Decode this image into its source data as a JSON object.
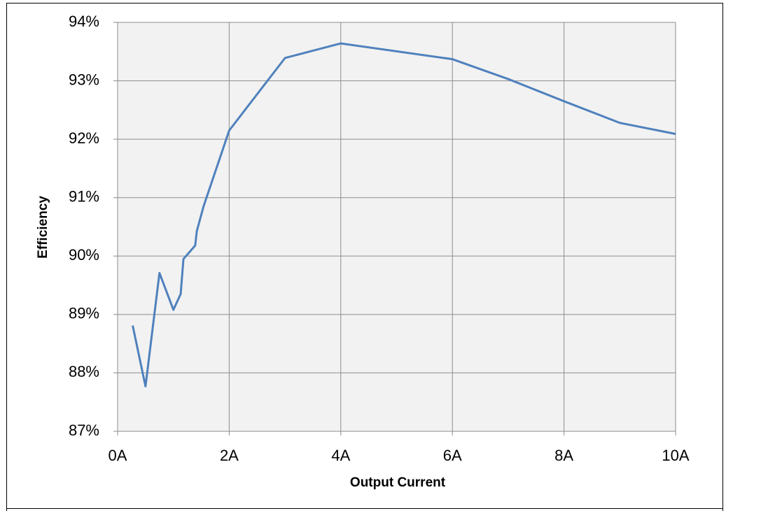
{
  "chart_data": {
    "type": "line",
    "x_label": "Output Current",
    "y_label": "Efficiency",
    "x": [
      0.27,
      0.5,
      0.75,
      1.0,
      1.13,
      1.18,
      1.39,
      1.42,
      1.54,
      2.0,
      3.0,
      4.0,
      6.0,
      7.0,
      8.0,
      9.0,
      10.0
    ],
    "series": [
      {
        "name": "Efficiency",
        "color": "#4f81bd",
        "values": [
          88.81,
          87.77,
          89.71,
          89.08,
          89.35,
          89.95,
          90.18,
          90.43,
          90.85,
          92.15,
          93.39,
          93.64,
          93.37,
          93.03,
          92.65,
          92.28,
          92.09
        ]
      }
    ],
    "xlim": [
      0,
      10
    ],
    "xticks": [
      {
        "value": 0,
        "label": "0A"
      },
      {
        "value": 2,
        "label": "2A"
      },
      {
        "value": 4,
        "label": "4A"
      },
      {
        "value": 6,
        "label": "6A"
      },
      {
        "value": 8,
        "label": "8A"
      },
      {
        "value": 10,
        "label": "10A"
      }
    ],
    "ylim": [
      87,
      94
    ],
    "yticks": [
      {
        "value": 87,
        "label": "87%"
      },
      {
        "value": 88,
        "label": "88%"
      },
      {
        "value": 89,
        "label": "89%"
      },
      {
        "value": 90,
        "label": "90%"
      },
      {
        "value": 91,
        "label": "91%"
      },
      {
        "value": 92,
        "label": "92%"
      },
      {
        "value": 93,
        "label": "93%"
      },
      {
        "value": 94,
        "label": "94%"
      }
    ],
    "grid": true,
    "legend": false
  }
}
